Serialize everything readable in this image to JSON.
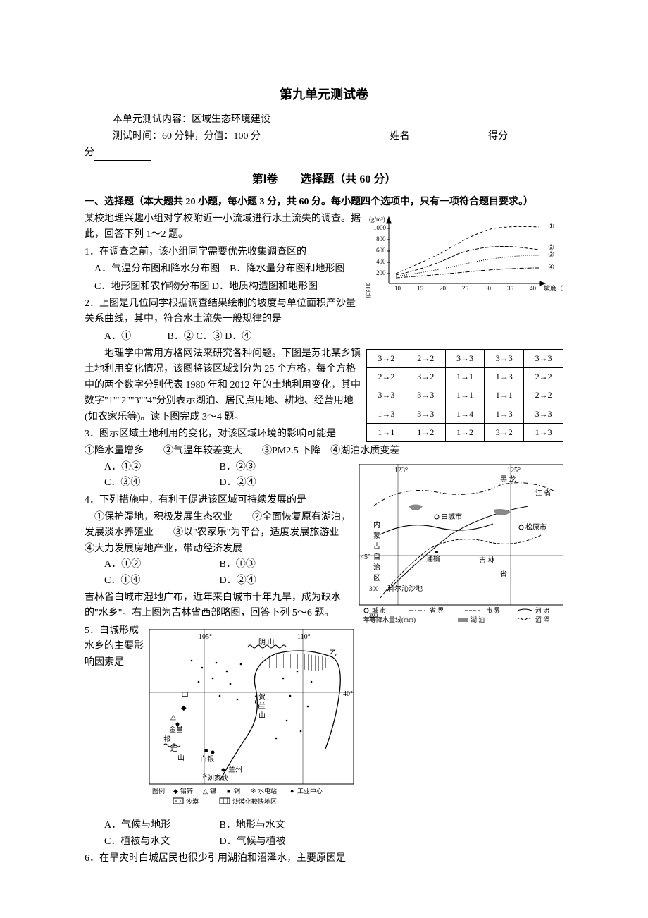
{
  "title": "第九单元测试卷",
  "meta": {
    "content_label": "本单元测试内容：区域生态环境建设",
    "time_score": "测试时间：60 分钟，分值：100 分",
    "name_label": "姓名",
    "score_label": "得分",
    "score_line2_prefix": "分"
  },
  "section1": {
    "header": "第Ⅰ卷　　选择题（共 60 分）",
    "part_header": "一、选择题（本大题共 20 小题，每小题 3 分，共 60 分。每小题四个选项中，只有一项符合题目要求。）"
  },
  "intro1": "某校地理兴趣小组对学校附近一小流域进行水土流失的调查。据此，回答下列 1～2 题。",
  "q1": {
    "stem": "1．在调查之前，该小组同学需要优先收集调查区的",
    "optA": "A．气温分布图和降水分布图",
    "optB": "B．降水量分布图和地形图",
    "optC": "C．地形图和农作物分布图",
    "optD": "D．地质构造图和地形图"
  },
  "q2": {
    "stem": "2．上图是几位同学根据调查结果绘制的坡度与单位面积产沙量关系曲线，其中，符合水土流失一般规律的是",
    "optA": "A．①",
    "optB": "B．②",
    "optC": "C．③",
    "optD": "D．④"
  },
  "chart1": {
    "y_label_vertical": "单位面积产沙量",
    "y_unit": "(g/m²)",
    "x_label": "坡度（°）",
    "x_ticks": [
      "10",
      "15",
      "20",
      "25",
      "30",
      "35",
      "40"
    ],
    "y_ticks": [
      "200",
      "400",
      "600",
      "800",
      "1000"
    ],
    "series_labels": [
      "①",
      "②",
      "③",
      "④"
    ],
    "line_styles": [
      "dashed",
      "dashed",
      "dotted",
      "dash-dot"
    ],
    "colors": {
      "axis": "#000",
      "line": "#000",
      "text": "#000",
      "bg": "#ffffff"
    }
  },
  "intro2": "地理学中常用方格网法来研究各种问题。下图是苏北某乡镇土地利用变化情况，该图将该区域划分为 25 个方格，每个方格中的两个数字分别代表 1980 年和 2012 年的土地利用变化，其中数字\"1\"\"2\"\"3\"\"4\"分别表示湖泊、居民点用地、耕地、经营用地(如农家乐等)。读下图完成 3～4 题。",
  "grid": {
    "rows": [
      [
        "3→2",
        "2→2",
        "3→3",
        "3→3",
        "3→3"
      ],
      [
        "2→2",
        "3→2",
        "1→1",
        "1→3",
        "2→2"
      ],
      [
        "3→3",
        "3→3",
        "1→1",
        "1→1",
        "2→2"
      ],
      [
        "1→3",
        "3→3",
        "1→4",
        "1→3",
        "3→3"
      ],
      [
        "1→1",
        "1→2",
        "1→2",
        "3→2",
        "1→3"
      ]
    ]
  },
  "q3": {
    "stem": "3．图示区域土地利用的变化，对该区域环境的影响可能是",
    "items": "①降水量增多　　②气温年较差变大　　③PM2.5 下降　④湖泊水质变差",
    "optA": "A．①②",
    "optB": "B．②③",
    "optC": "C．③④",
    "optD": "D．②④"
  },
  "q4": {
    "stem": "4．下列措施中，有利于促进该区域可持续发展的是",
    "items": "①保护湿地，积极发展生态农业　　②全面恢复原有湖泊，发展淡水养殖业　　③以\"农家乐\"为平台，适度发展旅游业　　④大力发展房地产业，带动经济发展",
    "optA": "A．①②",
    "optB": "B．①③",
    "optC": "C．①④",
    "optD": "D．②④"
  },
  "intro3": "吉林省白城市湿地广布，近年来白城市十年九旱，成为缺水的\"水乡\"。右上图为吉林省西部略图，回答下列 5～6 题。",
  "q5": {
    "stem": "5．白城形成水乡的主要影响因素是",
    "optA": "A．气候与地形",
    "optB": "B．地形与水文",
    "optC": "C．植被与水文",
    "optD": "D．气候与植被"
  },
  "q6": {
    "stem": "6．在旱灾时白城居民也很少引用湖泊和沼泽水，主要原因是"
  },
  "map1": {
    "lon_labels": [
      "123°",
      "125°"
    ],
    "lat_label": "45°",
    "places": [
      "黑龙江省",
      "白城市",
      "松原市",
      "通榆",
      "吉林省",
      "内蒙古自治区",
      "科尔沁沙地"
    ],
    "legend": {
      "city": "城市",
      "prov_border": "省界",
      "city_border": "市界",
      "river": "河流",
      "precip_label": "年等降水量线(mm)",
      "precip_val": "300",
      "lake": "湖泊",
      "marsh": "沼泽"
    }
  },
  "map2": {
    "lon_labels": [
      "105°",
      "110°"
    ],
    "lat_label": "40°",
    "places": [
      "阴山",
      "乙",
      "甲",
      "贺兰山",
      "金昌",
      "祁连山",
      "白银",
      "兰州",
      "刘家峡"
    ],
    "legend": {
      "title": "图例",
      "items": [
        "铅锌",
        "镍",
        "铜",
        "水电站",
        "工业中心",
        "沙漠",
        "沙漠化较快地区"
      ]
    },
    "symbols": {
      "pb_zn": "◆",
      "ni": "△",
      "cu": "■",
      "hydro": "※",
      "industry": "●"
    }
  }
}
